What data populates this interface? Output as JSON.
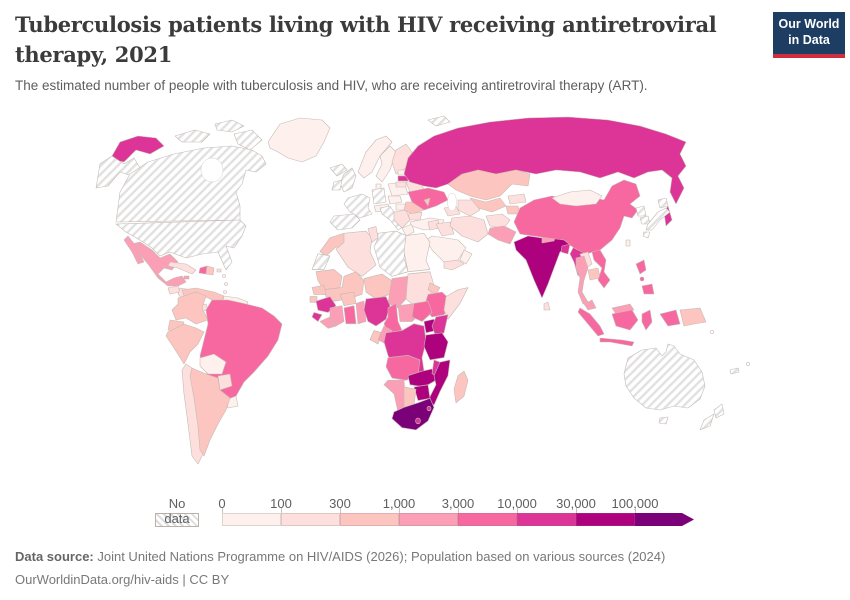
{
  "header": {
    "title": "Tuberculosis patients living with HIV receiving antiretroviral therapy, 2021",
    "subtitle": "The estimated number of people with tuberculosis and HIV, who are receiving antiretroviral therapy (ART)."
  },
  "logo": {
    "line1": "Our World",
    "line2": "in Data"
  },
  "footer": {
    "data_source_label": "Data source:",
    "data_source_text": " Joint United Nations Programme on HIV/AIDS (2026); Population based on various sources (2024)",
    "link": "OurWorldinData.org/hiv-aids",
    "license": " | CC BY"
  },
  "chart_data": {
    "type": "choropleth",
    "title": "Tuberculosis patients living with HIV receiving antiretroviral therapy",
    "year": "2021",
    "unit": "people receiving ART",
    "legend": {
      "no_data_label": "No data",
      "tick_labels": [
        "0",
        "100",
        "300",
        "1,000",
        "3,000",
        "10,000",
        "30,000",
        "100,000"
      ],
      "bucket_ranges": [
        "0–100",
        "100–300",
        "300–1,000",
        "1,000–3,000",
        "3,000–10,000",
        "10,000–30,000",
        "30,000–100,000",
        "100,000+"
      ],
      "colors": [
        "#fdf0ed",
        "#fde0dd",
        "#fcc5c0",
        "#fa9fb5",
        "#f768a1",
        "#dd3497",
        "#ae017e",
        "#7a0177"
      ],
      "no_data_pattern": "diagonal-hatch"
    },
    "countries": {
      "usa": 0,
      "canada": 0,
      "greenland": 1,
      "iceland": 0,
      "svalbard": 0,
      "mexico": 4,
      "guatemala": 2,
      "honduras": 2,
      "panama": 2,
      "cuba": 2,
      "jamaica": 4,
      "haiti": 5,
      "dominican-republic": 3,
      "puerto-rico": 2,
      "lesser-antilles": 1,
      "colombia": 3,
      "venezuela": 3,
      "guyanas": 1,
      "ecuador": 3,
      "peru": 3,
      "brazil": 5,
      "bolivia": 1,
      "paraguay": 2,
      "uruguay": 1,
      "chile": 2,
      "argentina": 3,
      "uk": 0,
      "ireland": 0,
      "france": 0,
      "spain": 0,
      "germany": 0,
      "italy": 0,
      "norway": 1,
      "sweden": 1,
      "finland": 2,
      "denmark": 1,
      "poland": 1,
      "czechia": 1,
      "alps": 1,
      "hungary": 1,
      "balkans": 2,
      "greece": 1,
      "romania": 3,
      "bulgaria": 2,
      "estonia": 1,
      "latvia": 6,
      "lithuania": 2,
      "belarus": 2,
      "ukraine": 5,
      "moldova": 3,
      "turkey": 1,
      "russia": 6,
      "kazakhstan": 3,
      "uzbekistan": 3,
      "turkmenistan": 2,
      "kyrgyzstan": 2,
      "tajikistan": 3,
      "caucasus": 2,
      "iran": 2,
      "iraq": 2,
      "syria": 2,
      "saudi-arabia": 1,
      "yemen": 2,
      "oman": 1,
      "afghanistan": 2,
      "pakistan": 4,
      "india": 7,
      "nepal": 4,
      "bangladesh": 6,
      "sri-lanka": 2,
      "myanmar": 6,
      "china": 5,
      "mongolia": 1,
      "north-korea": 0,
      "south-korea": 0,
      "japan": 0,
      "taiwan": 1,
      "laos": 2,
      "thailand": 4,
      "cambodia": 3,
      "vietnam": 5,
      "malaysia": 4,
      "indonesia": 5,
      "philippines": 5,
      "papua-new-guinea": 3,
      "pacific-islands": 0,
      "australia": 0,
      "new-zealand": 0,
      "morocco": 3,
      "western-sahara": 0,
      "algeria": 2,
      "tunisia": 2,
      "libya": 0,
      "egypt": 1,
      "mauritania": 3,
      "mali": 3,
      "niger": 3,
      "chad": 4,
      "sudan": 2,
      "eritrea": 3,
      "ethiopia": 5,
      "somalia": 2,
      "senegal": 3,
      "guinea-bissau": 3,
      "guinea": 6,
      "sierra-leone": 6,
      "liberia": 4,
      "cote-divoire": 4,
      "ghana": 5,
      "burkina-faso": 3,
      "togo-benin": 4,
      "nigeria": 6,
      "cameroon": 5,
      "central-african-republic": 4,
      "south-sudan": 5,
      "uganda": 7,
      "kenya": 6,
      "rwanda-burundi": 6,
      "drc": 6,
      "congo": 4,
      "gabon": 3,
      "tanzania": 7,
      "angola": 5,
      "zambia": 7,
      "malawi": 6,
      "mozambique": 7,
      "zimbabwe": 7,
      "namibia": 4,
      "botswana": 3,
      "south-africa": 8,
      "lesotho": 6,
      "eswatini": 6,
      "madagascar": 3
    }
  }
}
